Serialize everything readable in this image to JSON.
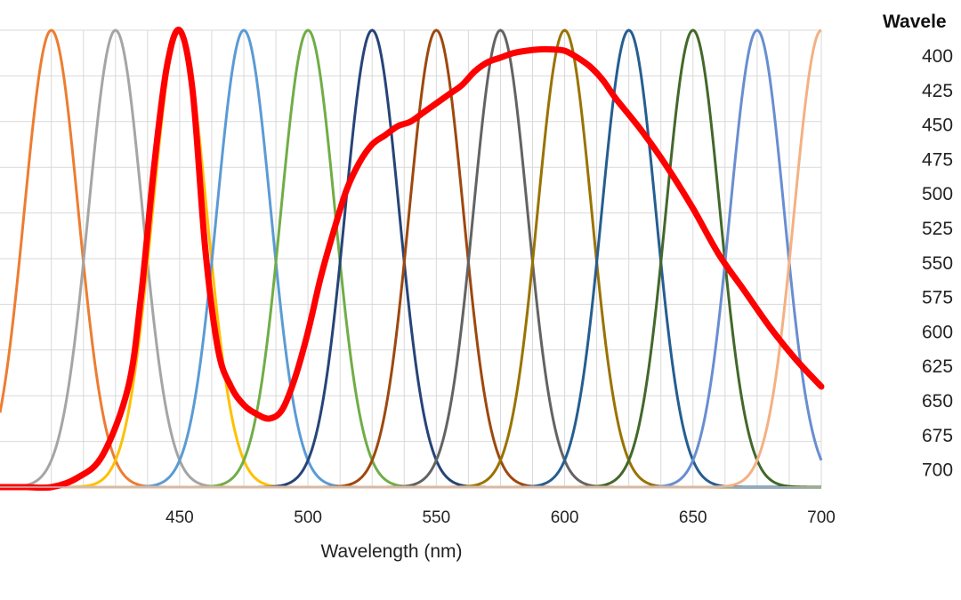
{
  "chart_data": {
    "type": "line",
    "xlabel": "Wavelength (nm)",
    "xlim": [
      380,
      700
    ],
    "ylim": [
      0,
      1
    ],
    "grid": true,
    "x_ticks": [
      450,
      500,
      550,
      600,
      650,
      700
    ],
    "legend": {
      "title": "Wavele",
      "placement": "right"
    },
    "filters": [
      {
        "name": "400",
        "center": 400,
        "color": "#ED7D31"
      },
      {
        "name": "425",
        "center": 425,
        "color": "#A5A5A5"
      },
      {
        "name": "450",
        "center": 450,
        "color": "#FFC000"
      },
      {
        "name": "475",
        "center": 475,
        "color": "#5B9BD5"
      },
      {
        "name": "500",
        "center": 500,
        "color": "#70AD47"
      },
      {
        "name": "525",
        "center": 525,
        "color": "#264478"
      },
      {
        "name": "550",
        "center": 550,
        "color": "#9E480E"
      },
      {
        "name": "575",
        "center": 575,
        "color": "#636363"
      },
      {
        "name": "600",
        "center": 600,
        "color": "#997300"
      },
      {
        "name": "625",
        "center": 625,
        "color": "#255E91"
      },
      {
        "name": "650",
        "center": 650,
        "color": "#43682B"
      },
      {
        "name": "675",
        "center": 675,
        "color": "#698ED0"
      },
      {
        "name": "700",
        "center": 700,
        "color": "#F4B183"
      }
    ],
    "filter_sigma_nm": 10.5,
    "spectrum": {
      "color": "#FF0000",
      "x": [
        380,
        390,
        400,
        410,
        420,
        430,
        435,
        440,
        445,
        450,
        455,
        460,
        465,
        470,
        475,
        480,
        485,
        490,
        495,
        500,
        505,
        510,
        515,
        520,
        525,
        530,
        535,
        540,
        545,
        550,
        555,
        560,
        565,
        570,
        575,
        580,
        585,
        590,
        595,
        600,
        605,
        610,
        615,
        620,
        630,
        640,
        650,
        660,
        670,
        680,
        690,
        700
      ],
      "y": [
        0.0,
        0.0,
        0.0,
        0.02,
        0.07,
        0.22,
        0.42,
        0.7,
        0.92,
        1.0,
        0.87,
        0.52,
        0.3,
        0.22,
        0.18,
        0.16,
        0.15,
        0.17,
        0.24,
        0.34,
        0.46,
        0.56,
        0.65,
        0.71,
        0.75,
        0.77,
        0.79,
        0.8,
        0.82,
        0.84,
        0.86,
        0.88,
        0.91,
        0.93,
        0.94,
        0.95,
        0.955,
        0.958,
        0.958,
        0.955,
        0.94,
        0.92,
        0.89,
        0.85,
        0.78,
        0.7,
        0.61,
        0.51,
        0.43,
        0.35,
        0.28,
        0.22
      ]
    }
  }
}
